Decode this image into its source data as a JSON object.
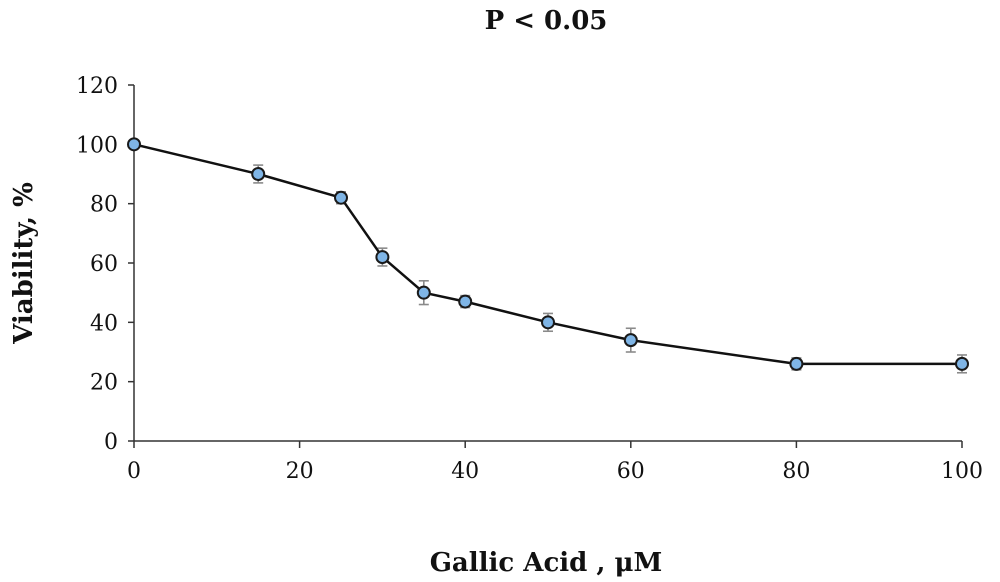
{
  "chart_data": {
    "type": "line",
    "title": "P < 0.05",
    "xlabel": "Gallic Acid , μM",
    "ylabel": "Viability, %",
    "xlim": [
      0,
      100
    ],
    "ylim": [
      0,
      120
    ],
    "xticks": [
      0,
      20,
      40,
      60,
      80,
      100
    ],
    "yticks": [
      0,
      20,
      40,
      60,
      80,
      100,
      120
    ],
    "grid": false,
    "legend": "none",
    "series": [
      {
        "x": [
          0,
          15,
          25,
          30,
          35,
          40,
          50,
          60,
          80,
          100
        ],
        "y": [
          100,
          90,
          82,
          62,
          50,
          47,
          40,
          34,
          26,
          26
        ],
        "error": [
          1,
          3,
          2,
          3,
          4,
          2,
          3,
          4,
          2,
          3
        ],
        "line_color": "#111111",
        "marker_color": "#7fb5e6"
      }
    ]
  }
}
